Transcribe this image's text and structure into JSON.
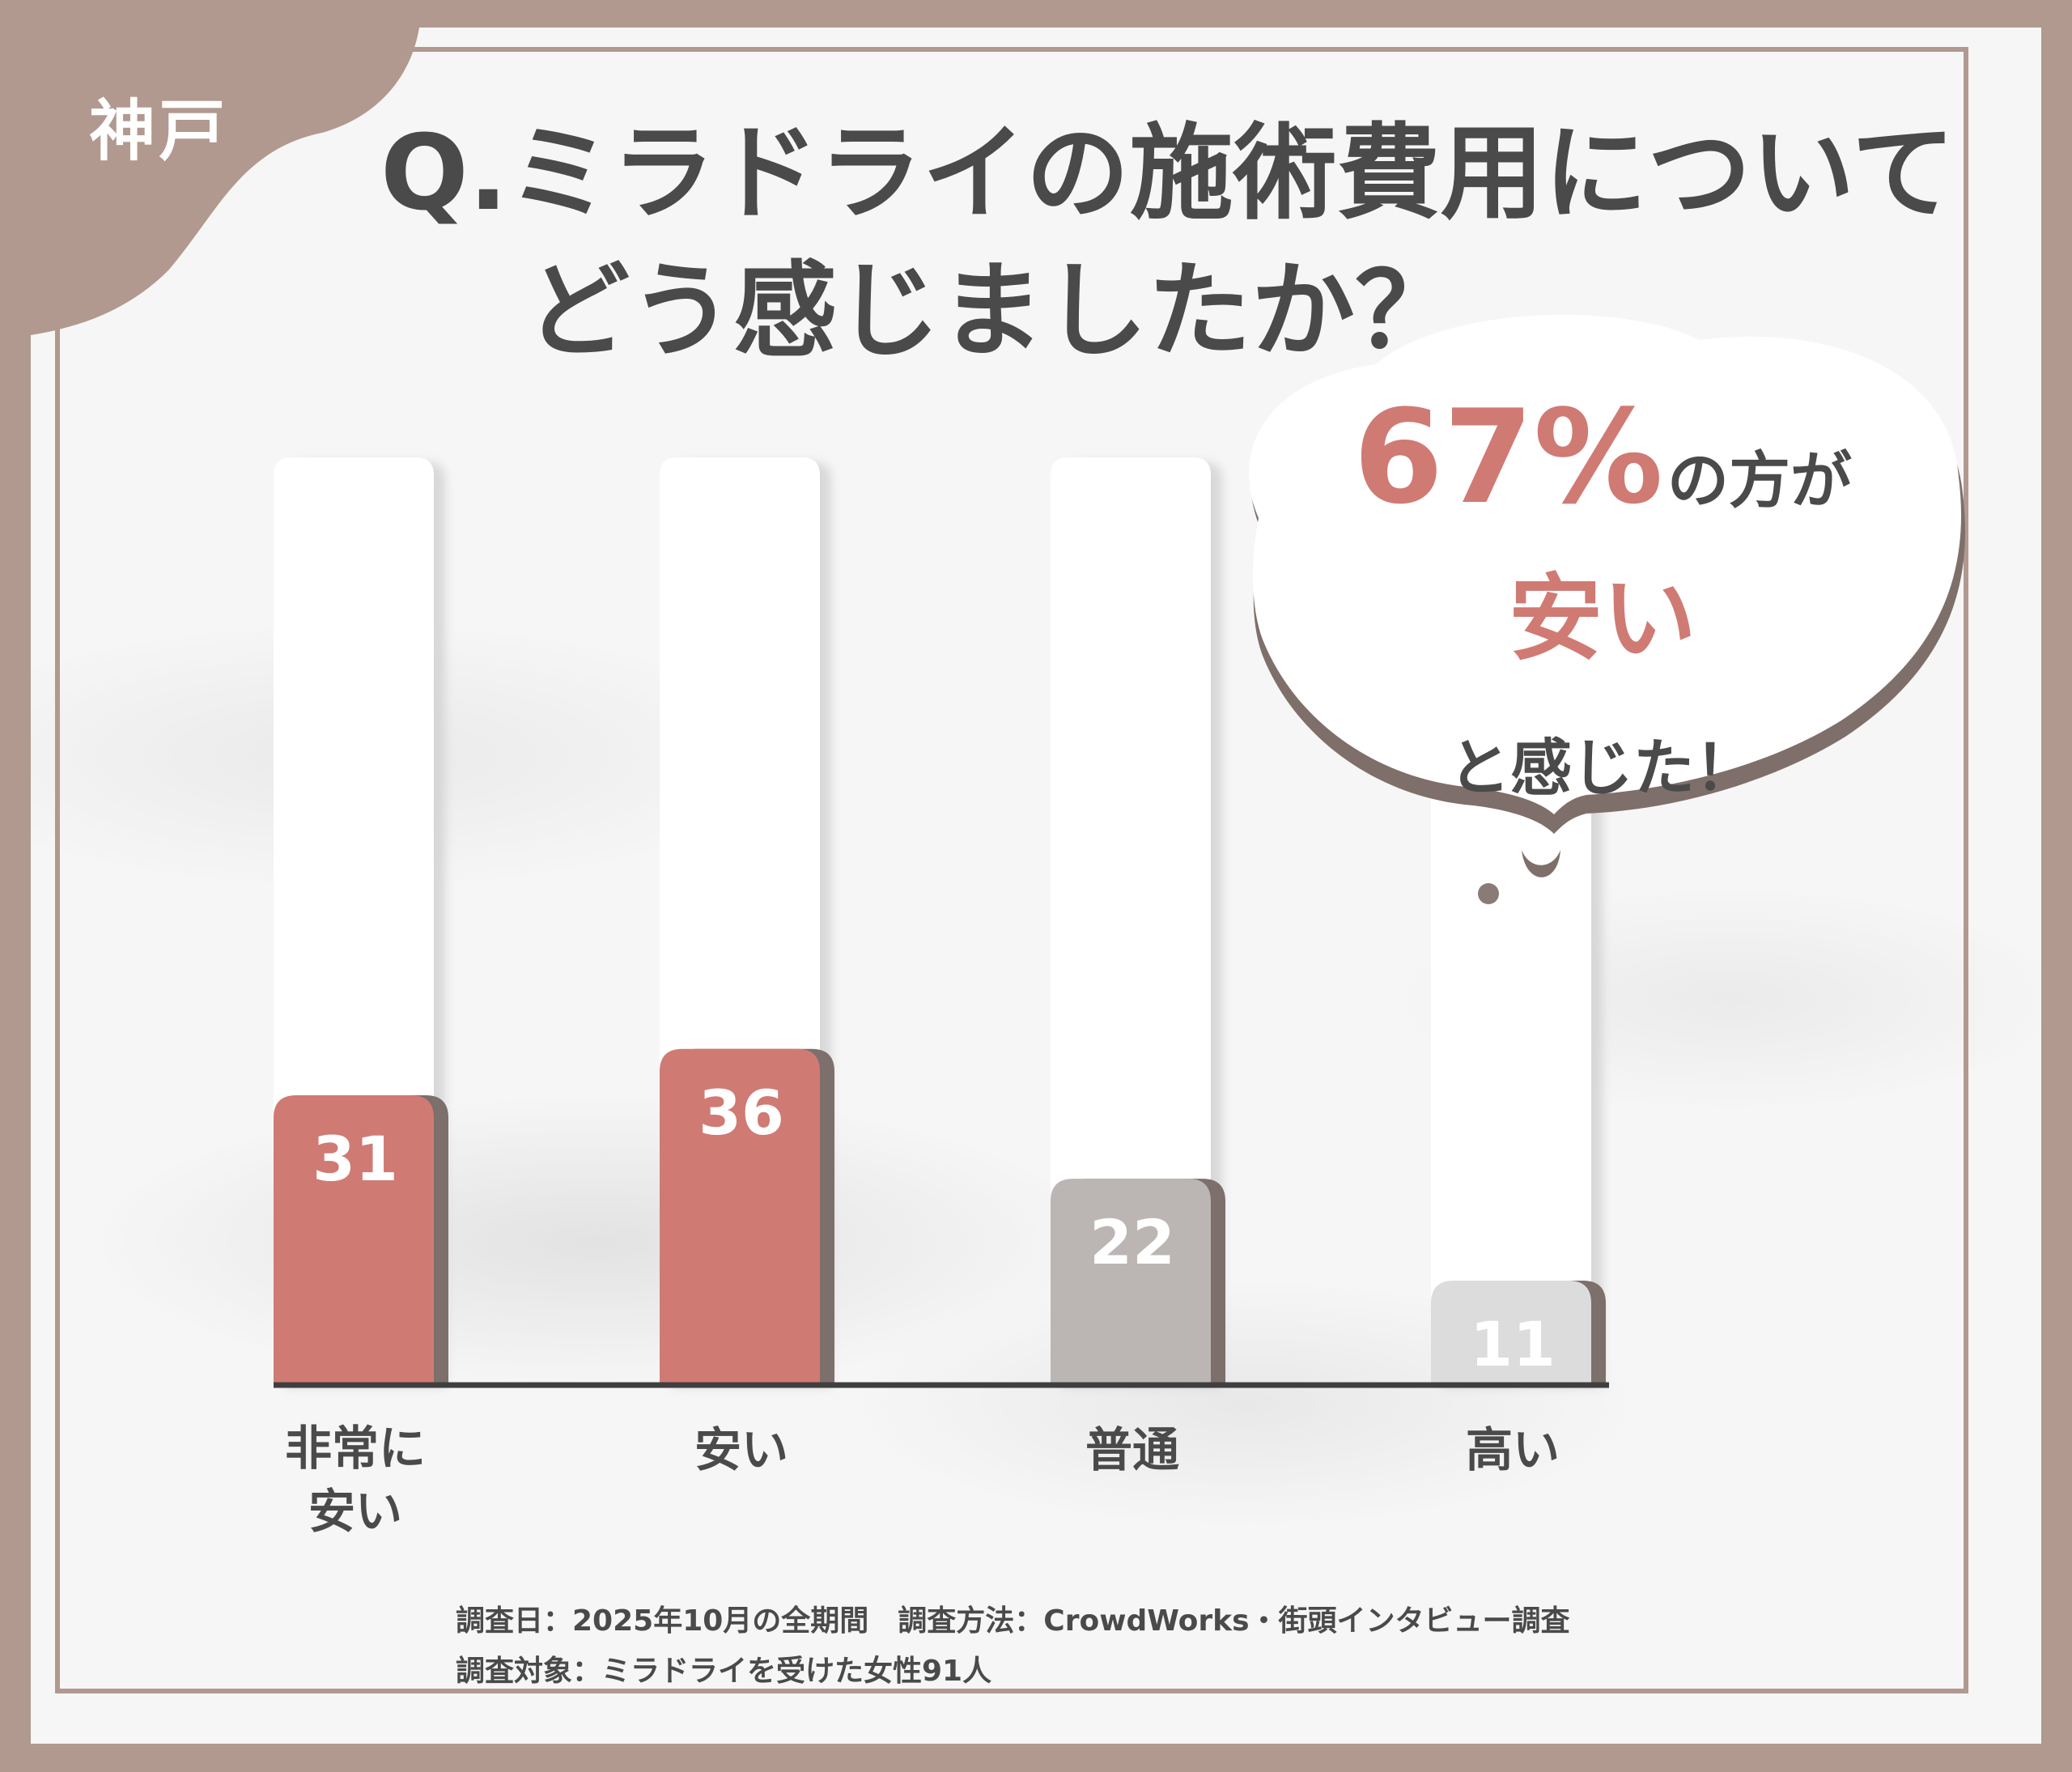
{
  "region_tag": "神戸",
  "title": {
    "line1": "Q.ミラドライの施術費用について",
    "line2": "どう感じましたか？"
  },
  "callout": {
    "percent": "67%",
    "part1": "の方が",
    "emphasis": "安い",
    "part2": "と感じた！"
  },
  "colors": {
    "frame": "#b1998f",
    "accent": "#d07a74",
    "bar_medium": "#bbb6b4",
    "bar_light": "#dcdcdc",
    "text": "#4a4a4a"
  },
  "chart_data": {
    "type": "bar",
    "categories": [
      "非常に安い",
      "安い",
      "普通",
      "高い"
    ],
    "category_labels": [
      [
        "非常に",
        "安い"
      ],
      [
        "安い"
      ],
      [
        "普通"
      ],
      [
        "高い"
      ]
    ],
    "values": [
      31,
      36,
      22,
      11
    ],
    "bar_colors": [
      "#d07a74",
      "#d07a74",
      "#bbb6b4",
      "#dcdcdc"
    ],
    "ylim": [
      0,
      100
    ],
    "title": "Q.ミラドライの施術費用についてどう感じましたか？",
    "xlabel": "",
    "ylabel": "",
    "grid": false
  },
  "footer": {
    "line1": "調査日：2025年10月の全期間　調査方法：CrowdWorks・街頭インタビュー調査",
    "line2": "調査対象：ミラドライを受けた女性91人"
  }
}
